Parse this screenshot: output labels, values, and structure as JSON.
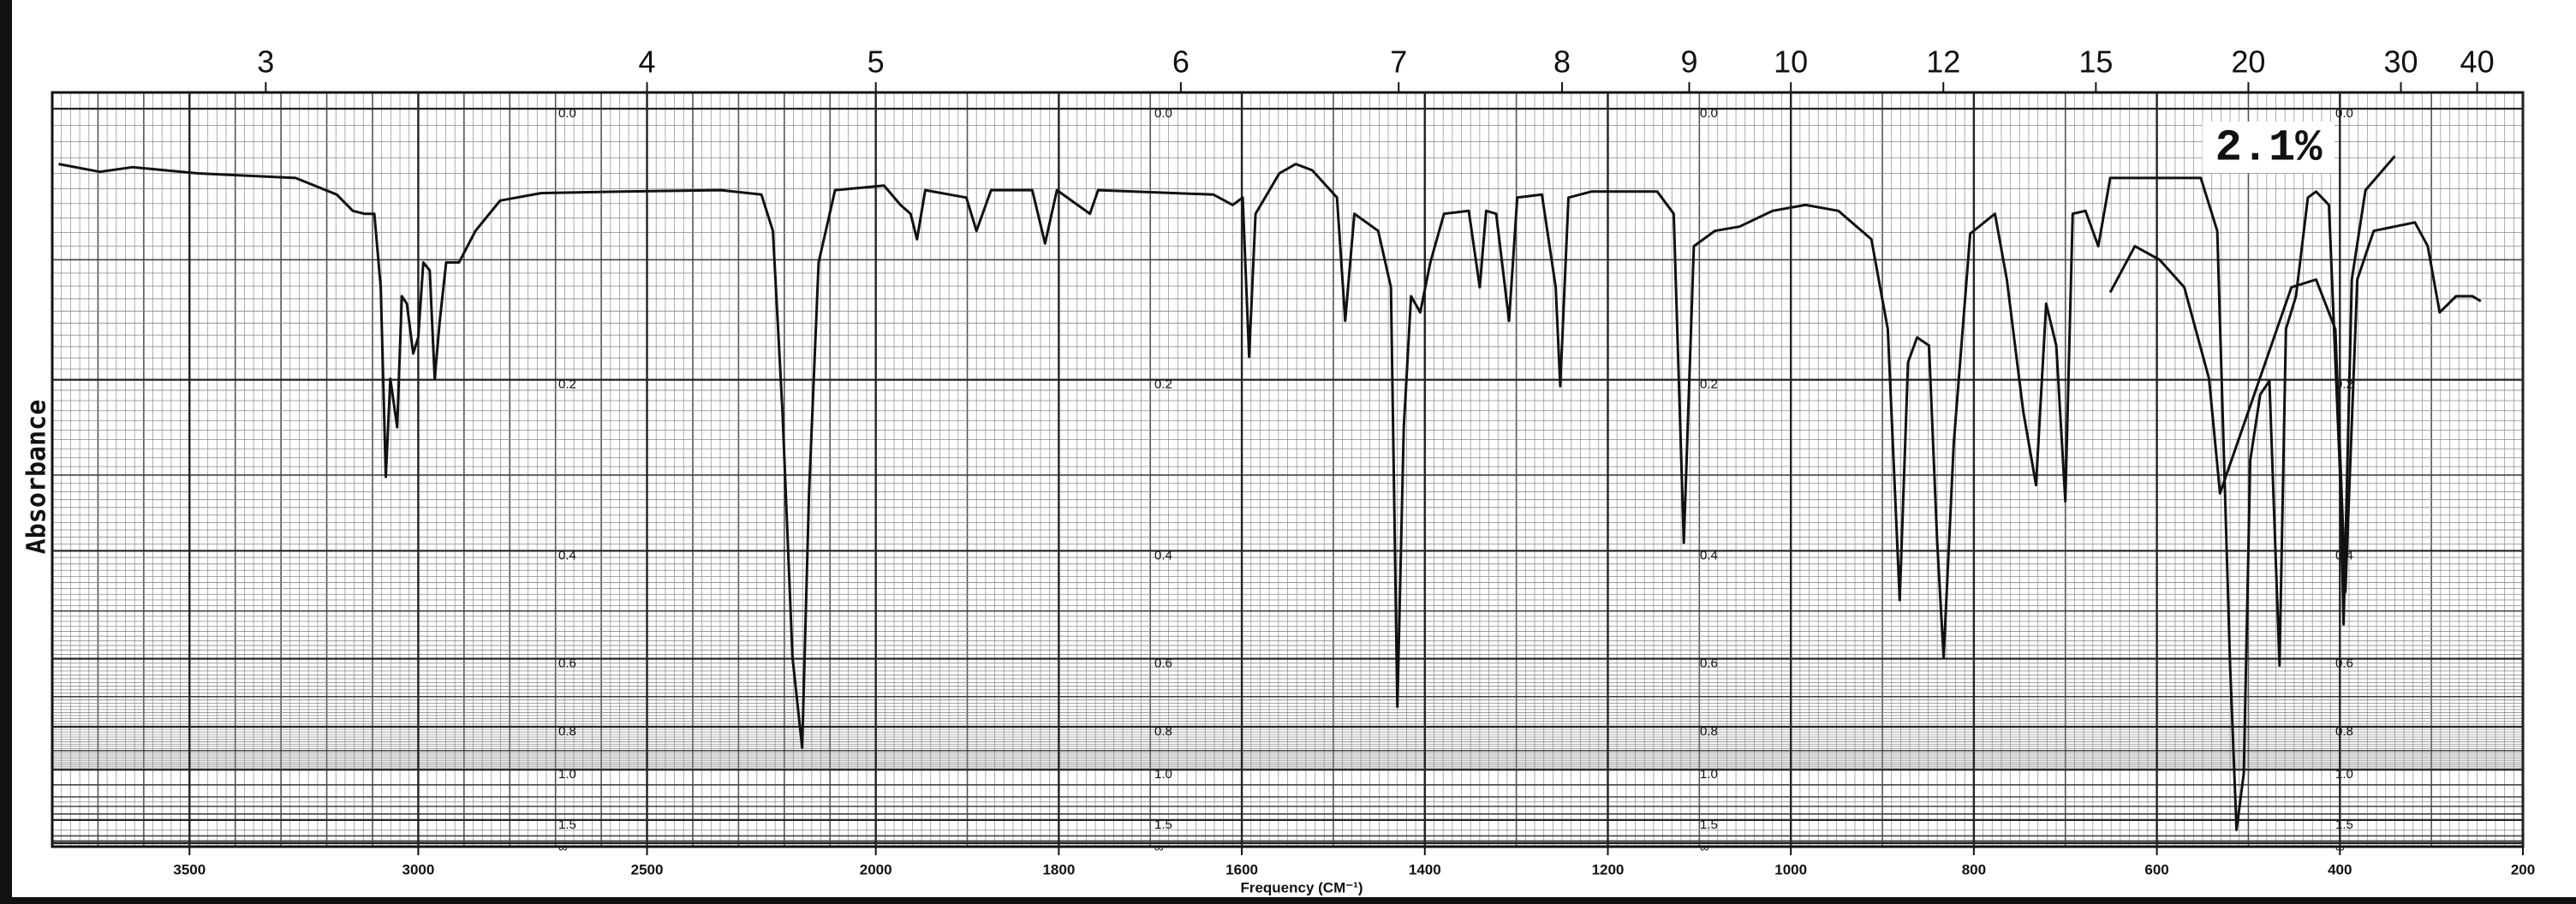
{
  "chart_data": {
    "type": "line",
    "y_label": "Absorbance",
    "x_label": "Frequency (CM⁻¹)",
    "annotation": "2.1%",
    "xlim": [
      3800,
      200
    ],
    "x_scale_break": 2000,
    "xticks": [
      3500,
      3000,
      2500,
      2000,
      1800,
      1600,
      1400,
      1200,
      1000,
      800,
      600,
      400,
      200
    ],
    "x2ticks": [
      3,
      4,
      5,
      6,
      7,
      8,
      9,
      10,
      12,
      15,
      20,
      30,
      40
    ],
    "ylim": [
      0,
      null
    ],
    "y_scale": "transmittance",
    "yticks": [
      {
        "value": 0,
        "label": "0.0"
      },
      0.2,
      0.4,
      0.6,
      0.8,
      {
        "value": 1,
        "label": "1.0"
      },
      1.5,
      {
        "value": null,
        "label": "∞"
      }
    ],
    "grid": true,
    "series": [
      {
        "color": "#111111",
        "x": [
          3786,
          3696,
          3625,
          3482,
          3268,
          3178,
          3143,
          3118,
          3096,
          3082,
          3071,
          3061,
          3046,
          3036,
          3025,
          3011,
          3000,
          2989,
          2975,
          2964,
          2953,
          2939,
          2911,
          2875,
          2821,
          2732,
          2554,
          2339,
          2250,
          2225,
          2204,
          2182,
          2161,
          2146,
          2125,
          2089,
          1991,
          1973,
          1962,
          1955,
          1946,
          1901,
          1890,
          1874,
          1829,
          1815,
          1802,
          1766,
          1757,
          1631,
          1610,
          1599,
          1592,
          1585,
          1559,
          1541,
          1523,
          1496,
          1487,
          1477,
          1451,
          1437,
          1430,
          1423,
          1415,
          1405,
          1394,
          1379,
          1352,
          1340,
          1333,
          1322,
          1308,
          1299,
          1272,
          1257,
          1252,
          1243,
          1218,
          1146,
          1128,
          1117,
          1106,
          1083,
          1056,
          1020,
          984,
          948,
          912,
          894,
          881,
          872,
          862,
          849,
          840,
          833,
          822,
          804,
          777,
          764,
          746,
          732,
          721,
          710,
          700,
          692,
          678,
          664,
          651,
          552,
          534,
          520,
          513,
          505,
          498,
          487,
          477,
          466,
          459,
          448,
          435,
          426,
          412,
          399,
          396,
          387,
          372,
          340
        ],
        "values": [
          0.034,
          0.039,
          0.036,
          0.04,
          0.043,
          0.054,
          0.065,
          0.067,
          0.067,
          0.121,
          0.302,
          0.199,
          0.247,
          0.128,
          0.134,
          0.176,
          0.162,
          0.102,
          0.108,
          0.199,
          0.148,
          0.102,
          0.102,
          0.079,
          0.058,
          0.053,
          0.052,
          0.051,
          0.054,
          0.079,
          0.231,
          0.597,
          0.886,
          0.322,
          0.102,
          0.051,
          0.048,
          0.061,
          0.067,
          0.085,
          0.051,
          0.056,
          0.079,
          0.051,
          0.051,
          0.088,
          0.051,
          0.067,
          0.051,
          0.054,
          0.061,
          0.056,
          0.179,
          0.067,
          0.04,
          0.034,
          0.038,
          0.056,
          0.148,
          0.067,
          0.079,
          0.121,
          0.731,
          0.247,
          0.128,
          0.141,
          0.102,
          0.067,
          0.065,
          0.121,
          0.065,
          0.067,
          0.148,
          0.056,
          0.054,
          0.121,
          0.206,
          0.056,
          0.052,
          0.052,
          0.067,
          0.388,
          0.09,
          0.079,
          0.076,
          0.065,
          0.061,
          0.065,
          0.085,
          0.155,
          0.48,
          0.184,
          0.162,
          0.169,
          0.388,
          0.597,
          0.264,
          0.081,
          0.067,
          0.115,
          0.231,
          0.312,
          0.134,
          0.169,
          0.332,
          0.067,
          0.065,
          0.09,
          0.043,
          0.043,
          0.079,
          0.616,
          1.74,
          1.02,
          0.283,
          0.214,
          0.201,
          0.616,
          0.155,
          0.128,
          0.056,
          0.052,
          0.061,
          0.322,
          0.526,
          0.115,
          0.051,
          0.029
        ]
      },
      {
        "color": "#111111",
        "x": [
          651,
          624,
          597,
          570,
          543,
          531,
          453,
          426,
          405,
          394,
          381,
          363,
          318,
          304,
          291,
          273,
          255,
          246
        ],
        "values": [
          0.125,
          0.09,
          0.1,
          0.121,
          0.199,
          0.322,
          0.121,
          0.115,
          0.155,
          0.466,
          0.115,
          0.079,
          0.073,
          0.09,
          0.141,
          0.128,
          0.128,
          0.132
        ]
      }
    ]
  }
}
